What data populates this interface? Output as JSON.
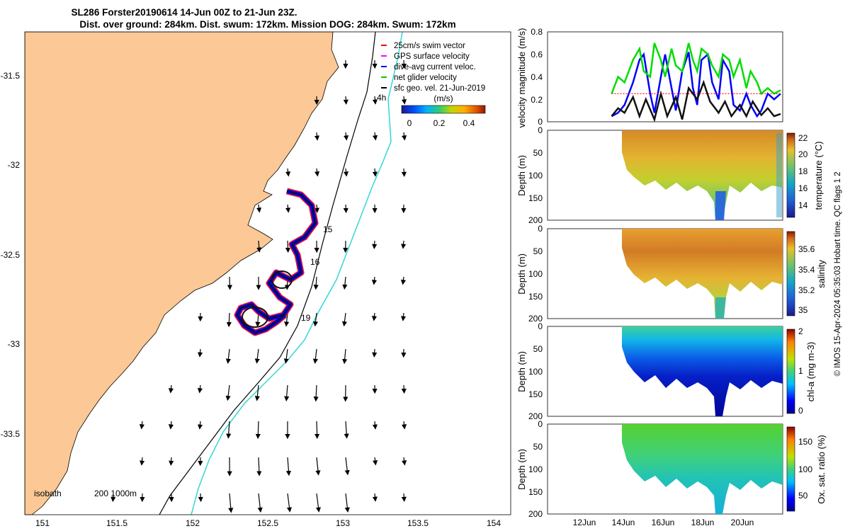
{
  "title": {
    "line1": "SL286 Forster20190614 14-Jun 00Z to 21-Jun 23Z.",
    "line2": "Dist. over ground: 284km. Dist. swum: 172km. Mission DOG: 284km. Swum: 172km"
  },
  "map": {
    "x_ticks": [
      "151",
      "151.5",
      "152",
      "152.5",
      "153",
      "153.5",
      "154"
    ],
    "y_ticks": [
      "-31.5",
      "-32",
      "-32.5",
      "-33",
      "-33.5"
    ],
    "legend": [
      {
        "label": "25cm/s swim vector",
        "color": "#ff0000"
      },
      {
        "label": "GPS surface velocity",
        "color": "#ff00ff"
      },
      {
        "label": "dive-avg current veloc.",
        "color": "#0000ff"
      },
      {
        "label": "net glider velocity",
        "color": "#00cc00"
      },
      {
        "label": "sfc geo. vel. 21-Jun-2019",
        "color": "#000000"
      }
    ],
    "colorbar_title": "(m/s)",
    "colorbar_ticks": [
      "0",
      "0.2",
      "0.4"
    ],
    "day_labels": [
      "15",
      "16",
      "19"
    ],
    "annotation_4h": "4h",
    "isobath_label": "isobath",
    "isobath_values": "200  1000m",
    "land_color": "#fbc896",
    "isobath_200_color": "#000000",
    "isobath_1000_color": "#33d6d6"
  },
  "chart_data": [
    {
      "type": "line",
      "title": "",
      "ylabel": "velocity magnitude (m/s)",
      "ylim": [
        0,
        0.8
      ],
      "y_ticks": [
        "0",
        "0.2",
        "0.4",
        "0.6",
        "0.8"
      ],
      "x_tick_labels": [
        "12Jun",
        "14Jun",
        "16Jun",
        "18Jun",
        "20Jun"
      ],
      "series": [
        {
          "name": "dive-avg current veloc.",
          "color": "#0000ff",
          "x": [
            14.0,
            14.3,
            14.6,
            15.0,
            15.3,
            15.5,
            15.8,
            16.0,
            16.3,
            16.5,
            16.8,
            17.0,
            17.3,
            17.6,
            17.8,
            18.0,
            18.2,
            18.5,
            18.7,
            19.0,
            19.2,
            19.5,
            19.7,
            20.0,
            20.3,
            20.5,
            20.8,
            21.0,
            21.3,
            21.6,
            21.9
          ],
          "y": [
            0.05,
            0.08,
            0.15,
            0.35,
            0.55,
            0.6,
            0.25,
            0.08,
            0.4,
            0.6,
            0.3,
            0.1,
            0.45,
            0.62,
            0.3,
            0.15,
            0.55,
            0.6,
            0.35,
            0.2,
            0.55,
            0.45,
            0.15,
            0.1,
            0.25,
            0.15,
            0.05,
            0.1,
            0.25,
            0.2,
            0.25
          ]
        },
        {
          "name": "net glider velocity",
          "color": "#00dd00",
          "x": [
            14.0,
            14.3,
            14.6,
            15.0,
            15.3,
            15.5,
            15.8,
            16.0,
            16.3,
            16.5,
            16.8,
            17.0,
            17.3,
            17.6,
            17.8,
            18.0,
            18.2,
            18.5,
            18.7,
            19.0,
            19.2,
            19.5,
            19.7,
            20.0,
            20.3,
            20.5,
            20.8,
            21.0,
            21.3,
            21.6,
            21.9
          ],
          "y": [
            0.25,
            0.4,
            0.35,
            0.55,
            0.65,
            0.45,
            0.4,
            0.7,
            0.55,
            0.4,
            0.65,
            0.5,
            0.45,
            0.7,
            0.55,
            0.45,
            0.65,
            0.6,
            0.5,
            0.4,
            0.6,
            0.55,
            0.4,
            0.55,
            0.3,
            0.45,
            0.35,
            0.25,
            0.3,
            0.25,
            0.28
          ]
        },
        {
          "name": "sfc geo. vel.",
          "color": "#111111",
          "x": [
            14.0,
            14.3,
            14.6,
            15.0,
            15.3,
            15.6,
            16.0,
            16.3,
            16.6,
            17.0,
            17.3,
            17.6,
            18.0,
            18.3,
            18.6,
            19.0,
            19.3,
            19.6,
            20.0,
            20.3,
            20.6,
            21.0,
            21.3,
            21.6,
            21.9
          ],
          "y": [
            0.05,
            0.12,
            0.08,
            0.22,
            0.05,
            0.2,
            0.02,
            0.25,
            0.05,
            0.22,
            0.02,
            0.3,
            0.2,
            0.35,
            0.18,
            0.08,
            0.18,
            0.05,
            0.15,
            0.05,
            0.18,
            0.06,
            0.12,
            0.05,
            0.07
          ]
        },
        {
          "name": "25cm/s swim vector",
          "color": "#ff0000",
          "x": [
            14.0,
            21.9
          ],
          "y": [
            0.25,
            0.25
          ]
        }
      ]
    },
    {
      "type": "heatmap",
      "ylabel": "Depth (m)",
      "colorbar_label": "temperature (°C)",
      "ylim": [
        0,
        200
      ],
      "y_ticks": [
        "0",
        "50",
        "100",
        "150",
        "200"
      ],
      "colorbar_ticks": [
        "14",
        "16",
        "18",
        "20",
        "22"
      ],
      "clim": [
        13,
        23
      ],
      "colormap": "parula",
      "x_tick_labels": [
        "12Jun",
        "14Jun",
        "16Jun",
        "18Jun",
        "20Jun"
      ]
    },
    {
      "type": "heatmap",
      "ylabel": "Depth (m)",
      "colorbar_label": "salinity",
      "ylim": [
        0,
        200
      ],
      "y_ticks": [
        "0",
        "50",
        "100",
        "150",
        "200"
      ],
      "colorbar_ticks": [
        "35",
        "35.2",
        "35.4",
        "35.6"
      ],
      "clim": [
        34.95,
        35.75
      ],
      "colormap": "parula",
      "x_tick_labels": [
        "12Jun",
        "14Jun",
        "16Jun",
        "18Jun",
        "20Jun"
      ]
    },
    {
      "type": "heatmap",
      "ylabel": "Depth (m)",
      "colorbar_label": "chl-a (mg m-3)",
      "ylim": [
        0,
        200
      ],
      "y_ticks": [
        "0",
        "50",
        "100",
        "150",
        "200"
      ],
      "colorbar_ticks": [
        "0",
        "1",
        "2"
      ],
      "clim": [
        0,
        2
      ],
      "colormap": "jet",
      "x_tick_labels": [
        "12Jun",
        "14Jun",
        "16Jun",
        "18Jun",
        "20Jun"
      ]
    },
    {
      "type": "heatmap",
      "ylabel": "Depth (m)",
      "colorbar_label": "Ox. sat. ratio (%)",
      "ylim": [
        0,
        200
      ],
      "y_ticks": [
        "0",
        "50",
        "100",
        "150",
        "200"
      ],
      "colorbar_ticks": [
        "50",
        "100",
        "150"
      ],
      "clim": [
        25,
        175
      ],
      "colormap": "jet",
      "x_tick_labels": [
        "12Jun",
        "14Jun",
        "16Jun",
        "18Jun",
        "20Jun"
      ]
    }
  ],
  "side_note": "© IMOS 15-Apr-2024 05:35:03 Hobart time. QC flags 1  2"
}
